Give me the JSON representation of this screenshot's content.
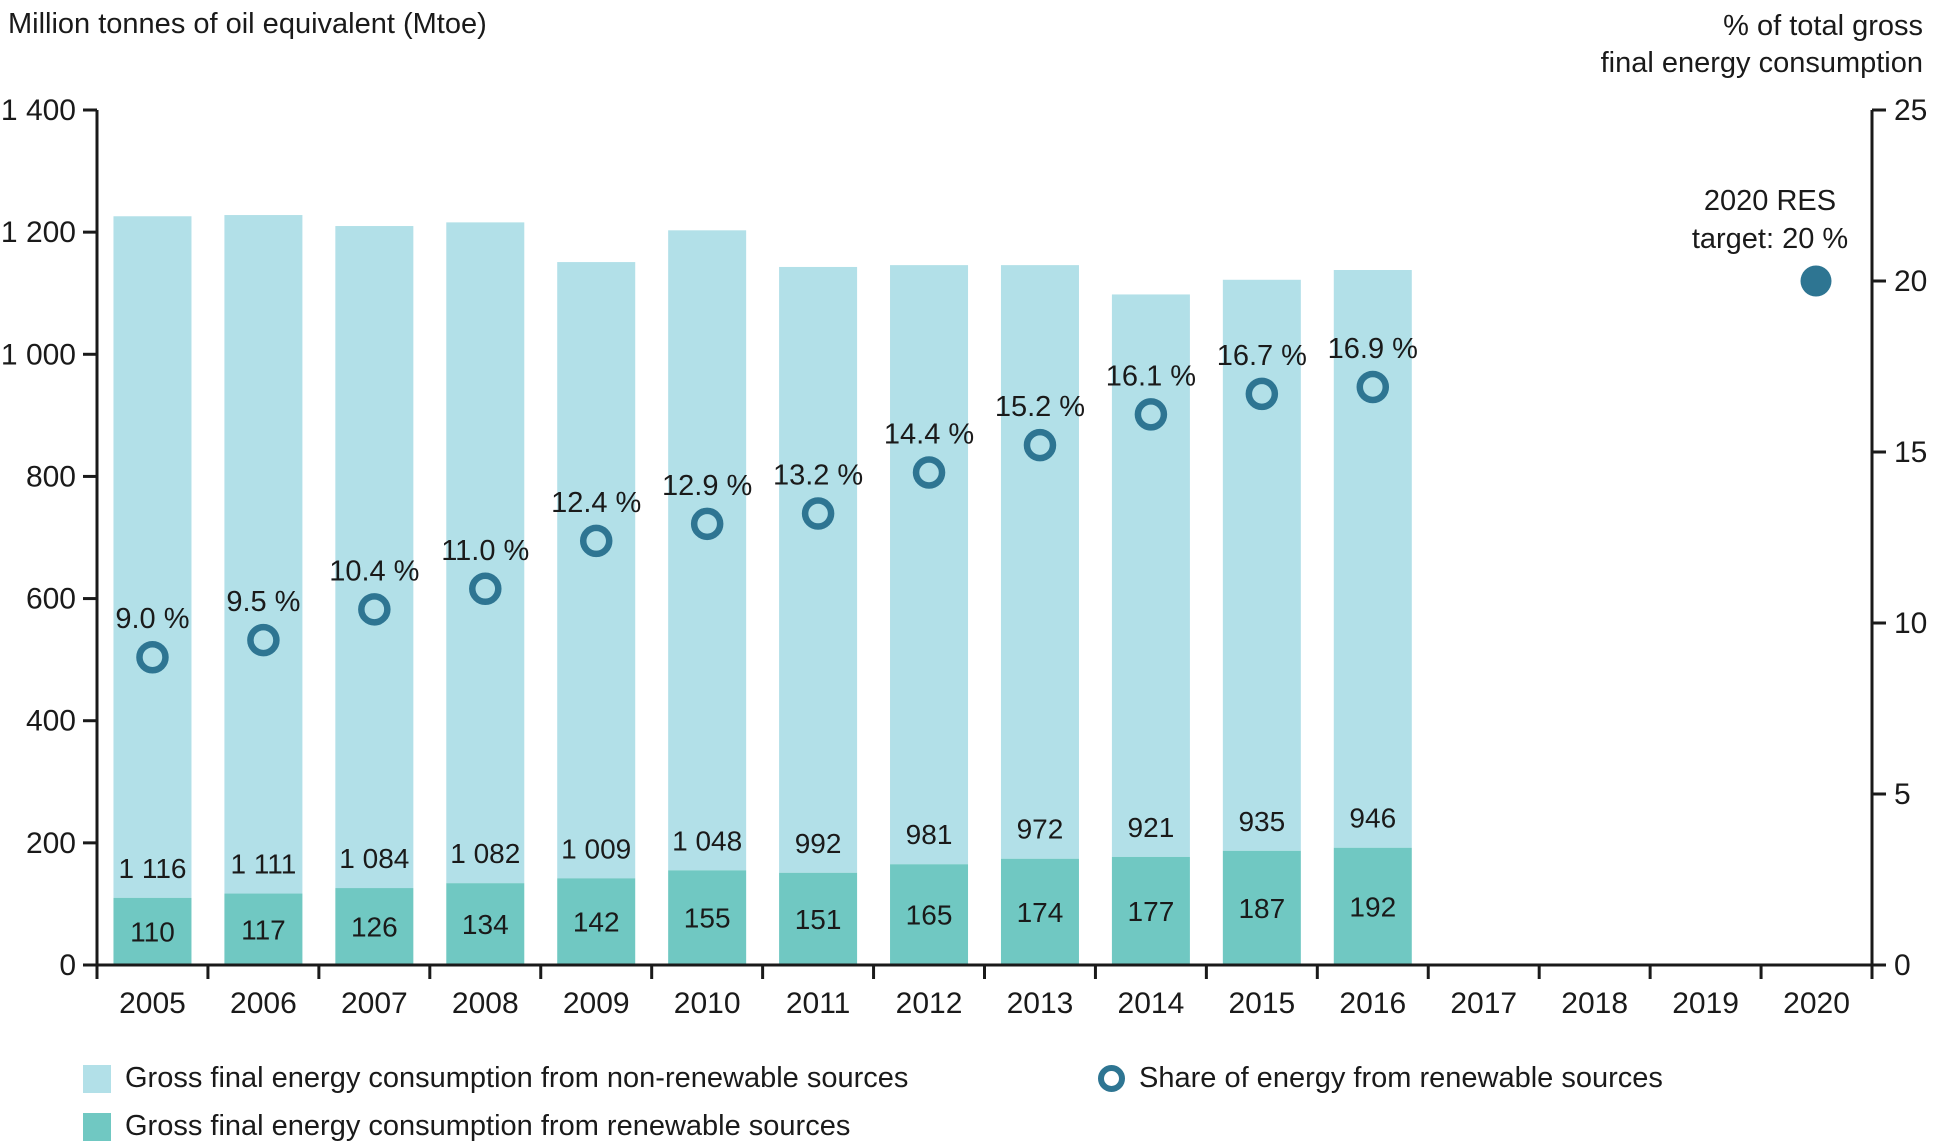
{
  "chart_data": {
    "type": "stacked-bar+scatter",
    "years": [
      "2005",
      "2006",
      "2007",
      "2008",
      "2009",
      "2010",
      "2011",
      "2012",
      "2013",
      "2014",
      "2015",
      "2016",
      "2017",
      "2018",
      "2019",
      "2020"
    ],
    "left_axis": {
      "title": "Million tonnes of oil equivalent (Mtoe)",
      "ylim": [
        0,
        1400
      ],
      "ticks": [
        {
          "label": "1 400",
          "value": 1400
        },
        {
          "label": "1 200",
          "value": 1200
        },
        {
          "label": "1 000",
          "value": 1000
        },
        {
          "label": "800",
          "value": 800
        },
        {
          "label": "600",
          "value": 600
        },
        {
          "label": "400",
          "value": 400
        },
        {
          "label": "200",
          "value": 200
        },
        {
          "label": "0",
          "value": 0
        }
      ]
    },
    "right_axis": {
      "title_line1": "% of total gross",
      "title_line2": "final energy consumption",
      "ylim": [
        0,
        25
      ],
      "ticks": [
        {
          "label": "25",
          "value": 25
        },
        {
          "label": "20",
          "value": 20
        },
        {
          "label": "15",
          "value": 15
        },
        {
          "label": "10",
          "value": 10
        },
        {
          "label": "5",
          "value": 5
        },
        {
          "label": "0",
          "value": 0
        }
      ]
    },
    "series": [
      {
        "name": "Gross final energy consumption from non-renewable sources",
        "type": "bar",
        "stack": "top",
        "values": [
          1116,
          1111,
          1084,
          1082,
          1009,
          1048,
          992,
          981,
          972,
          921,
          935,
          946
        ],
        "labels": [
          "1 116",
          "1 111",
          "1 084",
          "1 082",
          "1 009",
          "1 048",
          "992",
          "981",
          "972",
          "921",
          "935",
          "946"
        ]
      },
      {
        "name": "Gross final energy consumption from renewable sources",
        "type": "bar",
        "stack": "bottom",
        "values": [
          110,
          117,
          126,
          134,
          142,
          155,
          151,
          165,
          174,
          177,
          187,
          192
        ],
        "labels": [
          "110",
          "117",
          "126",
          "134",
          "142",
          "155",
          "151",
          "165",
          "174",
          "177",
          "187",
          "192"
        ]
      },
      {
        "name": "Share of energy from renewable sources",
        "type": "scatter",
        "axis": "right",
        "values": [
          9.0,
          9.5,
          10.4,
          11.0,
          12.4,
          12.9,
          13.2,
          14.4,
          15.2,
          16.1,
          16.7,
          16.9
        ],
        "labels": [
          "9.0 %",
          "9.5 %",
          "10.4 %",
          "11.0 %",
          "12.4 %",
          "12.9 %",
          "13.2 %",
          "14.4 %",
          "15.2 %",
          "16.1 %",
          "16.7 %",
          "16.9 %"
        ]
      }
    ],
    "target": {
      "line1": "2020 RES",
      "line2": "target: 20 %",
      "value": 20,
      "year": "2020"
    },
    "colors": {
      "non_renewable": "#b2e0e8",
      "renewable": "#70c8c2",
      "ring": "#2e7592",
      "target_dot": "#2e7592",
      "text": "#1a1a1a",
      "axis": "#1a1a1a"
    },
    "legend": [
      {
        "swatch": "square",
        "color_key": "non_renewable",
        "label": "Gross final energy consumption from non-renewable sources"
      },
      {
        "swatch": "square",
        "color_key": "renewable",
        "label": "Gross final energy consumption from renewable sources"
      },
      {
        "swatch": "ring",
        "color_key": "ring",
        "label": "Share of energy from renewable sources"
      }
    ]
  }
}
